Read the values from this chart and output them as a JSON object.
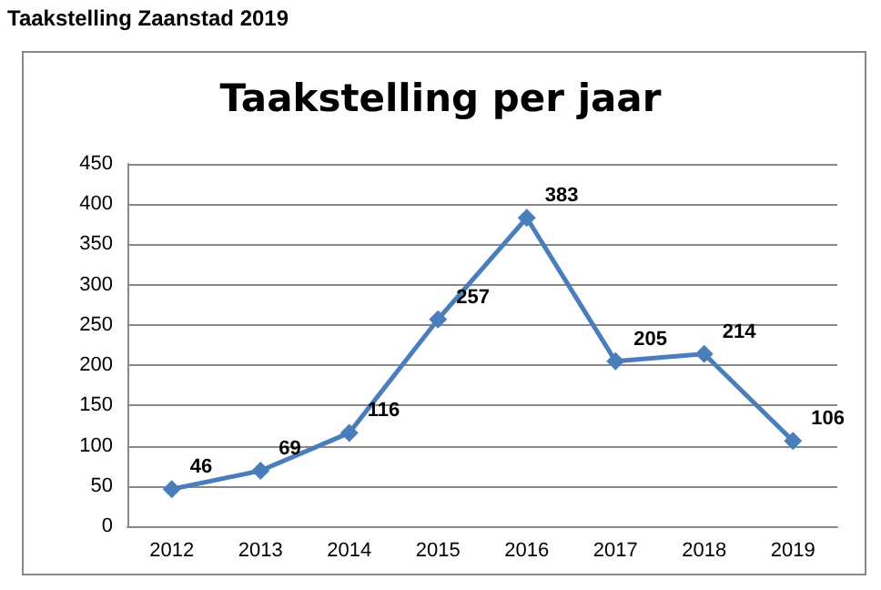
{
  "chart_data": {
    "type": "line",
    "title": "Taakstelling per jaar",
    "subtitle": "Taakstelling Zaanstad 2019",
    "categories": [
      "2012",
      "2013",
      "2014",
      "2015",
      "2016",
      "2017",
      "2018",
      "2019"
    ],
    "series": [
      {
        "color": "#4a7ebb",
        "values": [
          46,
          69,
          116,
          257,
          383,
          205,
          214,
          106
        ]
      }
    ],
    "ylim": [
      0,
      450
    ],
    "yticks": [
      0,
      50,
      100,
      150,
      200,
      250,
      300,
      350,
      400,
      450
    ],
    "grid": "y",
    "marker": "diamond",
    "line_style": "solid",
    "data_labels": true
  }
}
